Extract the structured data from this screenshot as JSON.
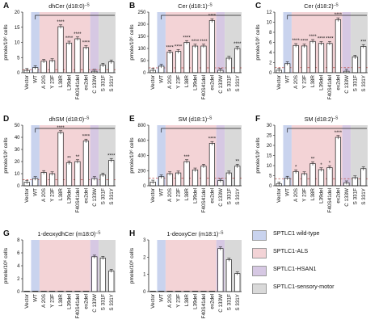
{
  "categories": [
    "Vector",
    "WT",
    "A 20S",
    "Y 23F",
    "L38R",
    "L39del",
    "F40S41del",
    "ex2del",
    "C 133W",
    "S 331F",
    "S 331Y"
  ],
  "group_colors": {
    "wildtype": "#c9d3ee",
    "als": "#f3d3d6",
    "hsan1": "#d6c8e3",
    "motor": "#d9d9d9"
  },
  "legend": [
    {
      "label": "SPTLC1 wild-type",
      "color": "#c9d3ee"
    },
    {
      "label": "SPTLC1-ALS",
      "color": "#f3d3d6"
    },
    {
      "label": "SPTLC1-HSAN1",
      "color": "#d6c8e3"
    },
    {
      "label": "SPTLC1-sensory-motor",
      "color": "#d9d9d9"
    }
  ],
  "chart_data": [
    {
      "type": "bar",
      "panel": "A",
      "title": "dhCer (d18:0)",
      "title_sup": "–S",
      "ylabel": "pmole/10⁶ cells",
      "yticks": [
        0,
        5,
        10,
        15,
        20
      ],
      "ylim": [
        0,
        20
      ],
      "dashed": 1.0,
      "categories": [
        "Vector",
        "WT",
        "A 20S",
        "Y 23F",
        "L38R",
        "L39del",
        "F40S41del",
        "ex2del",
        "C 133W",
        "S 331F",
        "S 331Y"
      ],
      "values": [
        0.8,
        1.7,
        3.8,
        4.0,
        15.2,
        9.8,
        11.2,
        8.3,
        0.5,
        2.5,
        3.6
      ],
      "significance": [
        "",
        "",
        "",
        "",
        "****",
        "****",
        "****",
        "****",
        "",
        "",
        ""
      ]
    },
    {
      "type": "bar",
      "panel": "B",
      "title": "Cer (d18:1)",
      "title_sup": "–S",
      "ylabel": "pmole/10⁶ cells",
      "yticks": [
        0,
        50,
        100,
        150,
        200,
        250
      ],
      "ylim": [
        0,
        250
      ],
      "dashed": 20,
      "categories": [
        "Vector",
        "WT",
        "A 20S",
        "Y 23F",
        "L38R",
        "L39del",
        "F40S41del",
        "ex2del",
        "C 133W",
        "S 331F",
        "S 331Y"
      ],
      "values": [
        10,
        27,
        85,
        88,
        125,
        110,
        110,
        215,
        10,
        60,
        100
      ],
      "significance": [
        "",
        "",
        "****",
        "****",
        "****",
        "****",
        "****",
        "****",
        "",
        "",
        "****"
      ]
    },
    {
      "type": "bar",
      "panel": "C",
      "title": "Cer (d18:2)",
      "title_sup": "–S",
      "ylabel": "pmole/10⁶ cells",
      "yticks": [
        0,
        2,
        4,
        6,
        8,
        10,
        12
      ],
      "ylim": [
        0,
        12
      ],
      "dashed": 1.0,
      "categories": [
        "Vector",
        "WT",
        "A 20S",
        "Y 23F",
        "L38R",
        "L39del",
        "F40S41del",
        "ex2del",
        "C 133W",
        "S 331F",
        "S 331Y"
      ],
      "values": [
        0.5,
        1.8,
        5.4,
        5.3,
        6.2,
        5.8,
        5.8,
        10.5,
        0.3,
        3.1,
        5.2
      ],
      "significance": [
        "",
        "",
        "****",
        "****",
        "****",
        "****",
        "****",
        "****",
        "",
        "",
        "***"
      ]
    },
    {
      "type": "bar",
      "panel": "D",
      "title": "dhSM (d18:0)",
      "title_sup": "–S",
      "ylabel": "pmole/10⁶ cells",
      "yticks": [
        0,
        10,
        20,
        30,
        40,
        50
      ],
      "ylim": [
        0,
        50
      ],
      "dashed": 5,
      "categories": [
        "Vector",
        "WT",
        "A 20S",
        "Y 23F",
        "L38R",
        "L39del",
        "F40S41del",
        "ex2del",
        "C 133W",
        "S 331F",
        "S 331Y"
      ],
      "values": [
        3,
        6,
        11,
        10,
        44,
        19,
        20,
        37,
        6,
        9,
        21
      ],
      "significance": [
        "",
        "",
        "",
        "",
        "****",
        "**",
        "**",
        "****",
        "",
        "",
        "****"
      ]
    },
    {
      "type": "bar",
      "panel": "E",
      "title": "SM (d18:1)",
      "title_sup": "–S",
      "ylabel": "pmole/10⁶ cells",
      "yticks": [
        0,
        200,
        400,
        600,
        800
      ],
      "ylim": [
        0,
        800
      ],
      "dashed": 100,
      "categories": [
        "Vector",
        "WT",
        "A 20S",
        "Y 23F",
        "L38R",
        "L39del",
        "F40S41del",
        "ex2del",
        "C 133W",
        "S 331F",
        "S 331Y"
      ],
      "values": [
        50,
        120,
        160,
        170,
        320,
        210,
        260,
        560,
        70,
        170,
        260
      ],
      "significance": [
        "",
        "",
        "",
        "",
        "***",
        "",
        "",
        "****",
        "",
        "",
        "**"
      ]
    },
    {
      "type": "bar",
      "panel": "F",
      "title": "SM (d18:2)",
      "title_sup": "–S",
      "ylabel": "pmole/10⁶ cells",
      "yticks": [
        0,
        5,
        10,
        15,
        20,
        25,
        30
      ],
      "ylim": [
        0,
        30
      ],
      "dashed": 3.5,
      "categories": [
        "Vector",
        "WT",
        "A 20S",
        "Y 23F",
        "L38R",
        "L39del",
        "F40S41del",
        "ex2del",
        "C 133W",
        "S 331F",
        "S 331Y"
      ],
      "values": [
        1,
        3.8,
        7,
        6,
        11,
        8,
        9,
        24,
        1.5,
        4,
        8.5
      ],
      "significance": [
        "",
        "",
        "*",
        "",
        "**",
        "*",
        "*",
        "****",
        "",
        "",
        ""
      ]
    },
    {
      "type": "bar",
      "panel": "G",
      "title": "1-deoxydhCer (m18:0)",
      "title_sup": "–S",
      "ylabel": "pmole/10⁶ cells",
      "yticks": [
        0,
        2,
        4,
        6,
        8
      ],
      "ylim": [
        0,
        8
      ],
      "dashed": null,
      "categories": [
        "Vector",
        "WT",
        "A 20S",
        "Y 23F",
        "L38R",
        "L39del",
        "F40S41del",
        "ex2del",
        "C 133W",
        "S 331F",
        "S 331Y"
      ],
      "values": [
        0.05,
        0.05,
        0.05,
        0.05,
        0.05,
        0.05,
        0.05,
        0.05,
        5.4,
        5.2,
        3.2
      ],
      "significance": [
        "",
        "",
        "",
        "",
        "",
        "",
        "",
        "",
        "",
        "",
        ""
      ]
    },
    {
      "type": "bar",
      "panel": "H",
      "title": "1-deoxyCer (m18:1)",
      "title_sup": "–S",
      "ylabel": "pmole/10⁶ cells",
      "yticks": [
        0,
        1,
        2,
        3
      ],
      "ylim": [
        0,
        3
      ],
      "dashed": null,
      "categories": [
        "Vector",
        "WT",
        "A 20S",
        "Y 23F",
        "L38R",
        "L39del",
        "F40S41del",
        "ex2del",
        "C 133W",
        "S 331F",
        "S 331Y"
      ],
      "values": [
        0.01,
        0.01,
        0.01,
        0.01,
        0.01,
        0.01,
        0.01,
        0.01,
        2.5,
        1.85,
        1.05
      ],
      "significance": [
        "",
        "",
        "",
        "",
        "",
        "",
        "",
        "",
        "",
        "",
        ""
      ]
    }
  ]
}
